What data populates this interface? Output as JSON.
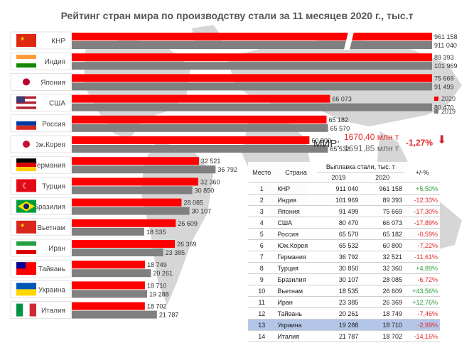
{
  "title": "Рейтинг стран мира по производству стали за 11 месяцев 2020 г., тыс.т",
  "chart_data": {
    "type": "bar",
    "orientation": "horizontal",
    "categories": [
      "КНР",
      "Индия",
      "Япония",
      "США",
      "Россия",
      "Юж.Корея",
      "Германия",
      "Турция",
      "Бразилия",
      "Вьетнам",
      "Иран",
      "Тайвань",
      "Украина",
      "Италия"
    ],
    "series": [
      {
        "name": "2020",
        "color": "#ff0000",
        "values": [
          961158,
          89393,
          75669,
          66073,
          65182,
          60800,
          32521,
          32360,
          28085,
          26609,
          26369,
          18749,
          18710,
          18702
        ]
      },
      {
        "name": "2019",
        "color": "#808080",
        "values": [
          911040,
          101969,
          91499,
          80470,
          65570,
          65532,
          36792,
          30850,
          30107,
          18535,
          23385,
          20261,
          19288,
          21787
        ]
      }
    ],
    "value_labels": {
      "2020": [
        "961 158",
        "89 393",
        "75 669",
        "66 073",
        "65 182",
        "60 800",
        "32 521",
        "32 360",
        "28 085",
        "26 609",
        "26 369",
        "18 749",
        "18 710",
        "18 702"
      ],
      "2019": [
        "911 040",
        "101 969",
        "91 499",
        "80 470",
        "65 570",
        "65 532",
        "36 792",
        "30 850",
        "30 107",
        "18 535",
        "23 385",
        "20 261",
        "19 288",
        "21 787"
      ]
    },
    "axis_break": true,
    "legend": {
      "position": "right",
      "entries": [
        "2020",
        "2019"
      ]
    },
    "flags": [
      "china-flag",
      "india-flag",
      "japan-flag",
      "usa-flag",
      "russia-flag",
      "south-korea-flag",
      "germany-flag",
      "turkey-flag",
      "brazil-flag",
      "vietnam-flag",
      "iran-flag",
      "taiwan-flag",
      "ukraine-flag",
      "italy-flag"
    ],
    "background": "world-map"
  },
  "world": {
    "label": "МИР:",
    "value_2020": "1670,40 млн т",
    "value_2019": "1691,85 млн т",
    "change": "-1,27%"
  },
  "table": {
    "headers": {
      "place": "Место",
      "country": "Страна",
      "group": "Выплавка стали, тыс. т",
      "y2019": "2019",
      "y2020": "2020",
      "change": "+/-%"
    },
    "highlight_row": 12,
    "rows": [
      [
        "1",
        "КНР",
        "911 040",
        "961 158",
        "+5,50%"
      ],
      [
        "2",
        "Индия",
        "101 969",
        "89 393",
        "-12,33%"
      ],
      [
        "3",
        "Япония",
        "91 499",
        "75 669",
        "-17,30%"
      ],
      [
        "4",
        "США",
        "80 470",
        "66 073",
        "-17,89%"
      ],
      [
        "5",
        "Россия",
        "65 570",
        "65 182",
        "-0,59%"
      ],
      [
        "6",
        "Юж.Корея",
        "65 532",
        "60 800",
        "-7,22%"
      ],
      [
        "7",
        "Германия",
        "36 792",
        "32 521",
        "-11,61%"
      ],
      [
        "8",
        "Турция",
        "30 850",
        "32 360",
        "+4,89%"
      ],
      [
        "9",
        "Бразилия",
        "30 107",
        "28 085",
        "-6,72%"
      ],
      [
        "10",
        "Вьетнам",
        "18 535",
        "26 609",
        "+43,56%"
      ],
      [
        "11",
        "Иран",
        "23 385",
        "26 369",
        "+12,76%"
      ],
      [
        "12",
        "Тайвань",
        "20 261",
        "18 749",
        "-7,46%"
      ],
      [
        "13",
        "Украина",
        "19 288",
        "18 710",
        "-2,99%"
      ],
      [
        "14",
        "Италия",
        "21 787",
        "18 702",
        "-14,16%"
      ]
    ]
  }
}
